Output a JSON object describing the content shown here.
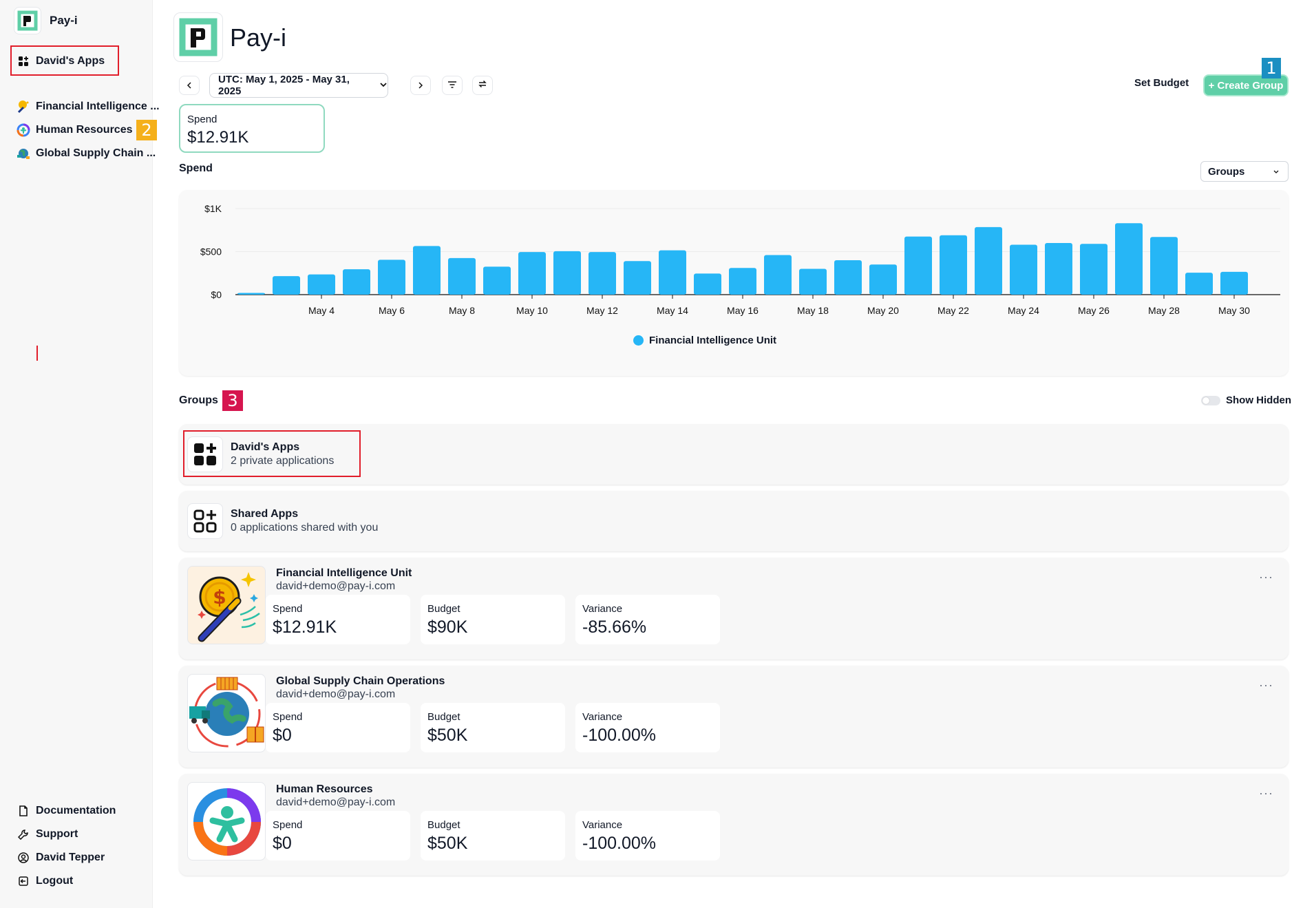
{
  "app": {
    "name": "Pay-i",
    "title": "Pay-i"
  },
  "sidebar": {
    "active_item": "David's Apps",
    "apps": [
      "Financial Intelligence ...",
      "Human Resources",
      "Global Supply Chain ..."
    ],
    "bottom": [
      "Documentation",
      "Support",
      "David Tepper",
      "Logout"
    ]
  },
  "badges": {
    "one": "1",
    "two": "2",
    "three": "3"
  },
  "toolbar": {
    "date_range": "UTC: May 1, 2025 - May 31, 2025",
    "set_budget": "Set Budget",
    "create_group": "+ Create Group"
  },
  "summary": {
    "spend_label": "Spend",
    "spend_value": "$12.91K"
  },
  "chart_section": {
    "label": "Spend",
    "group_by": "Groups"
  },
  "chart_data": {
    "type": "bar",
    "x": [
      "May 2",
      "May 3",
      "May 4",
      "May 5",
      "May 6",
      "May 7",
      "May 8",
      "May 9",
      "May 10",
      "May 11",
      "May 12",
      "May 13",
      "May 14",
      "May 15",
      "May 16",
      "May 17",
      "May 18",
      "May 19",
      "May 20",
      "May 21",
      "May 22",
      "May 23",
      "May 24",
      "May 25",
      "May 26",
      "May 27",
      "May 28",
      "May 29",
      "May 30",
      "May 31"
    ],
    "xticks": [
      "May 4",
      "May 6",
      "May 8",
      "May 10",
      "May 12",
      "May 14",
      "May 16",
      "May 18",
      "May 20",
      "May 22",
      "May 24",
      "May 26",
      "May 28",
      "May 30"
    ],
    "yticks": [
      "$0",
      "$500",
      "$1K"
    ],
    "series": [
      {
        "name": "Financial Intelligence Unit",
        "values": [
          20,
          215,
          235,
          295,
          405,
          565,
          425,
          325,
          495,
          505,
          495,
          390,
          515,
          245,
          310,
          460,
          300,
          400,
          350,
          675,
          690,
          785,
          580,
          600,
          590,
          830,
          670,
          255,
          265,
          0
        ]
      }
    ],
    "ylim": [
      0,
      1000
    ],
    "legend": "bottom-center",
    "grid": true
  },
  "groups_section": {
    "label": "Groups",
    "show_hidden": "Show Hidden"
  },
  "groups": [
    {
      "title": "David's Apps",
      "subtitle": "2 private applications"
    },
    {
      "title": "Shared Apps",
      "subtitle": "0 applications shared with you"
    }
  ],
  "apps": [
    {
      "name": "Financial Intelligence Unit",
      "email": "david+demo@pay-i.com",
      "spend_label": "Spend",
      "spend": "$12.91K",
      "budget_label": "Budget",
      "budget": "$90K",
      "variance_label": "Variance",
      "variance": "-85.66%"
    },
    {
      "name": "Global Supply Chain Operations",
      "email": "david+demo@pay-i.com",
      "spend_label": "Spend",
      "spend": "$0",
      "budget_label": "Budget",
      "budget": "$50K",
      "variance_label": "Variance",
      "variance": "-100.00%"
    },
    {
      "name": "Human Resources",
      "email": "david+demo@pay-i.com",
      "spend_label": "Spend",
      "spend": "$0",
      "budget_label": "Budget",
      "budget": "$50K",
      "variance_label": "Variance",
      "variance": "-100.00%"
    }
  ],
  "colors": {
    "accent": "#5fcfa7",
    "bar": "#26b6f6",
    "highlight": "#e11d2a"
  },
  "menu": {
    "more": "···"
  }
}
